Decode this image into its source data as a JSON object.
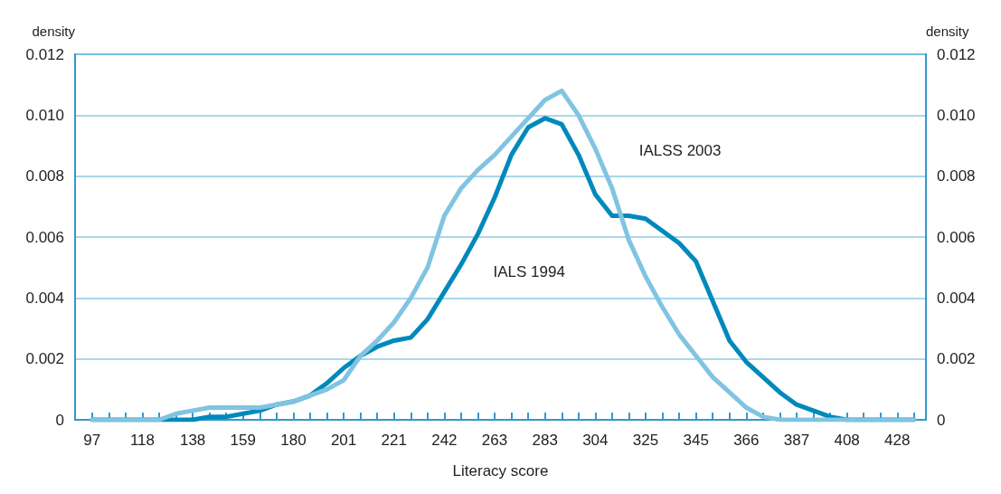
{
  "chart_data": {
    "type": "line",
    "xlabel": "Literacy score",
    "ylabel": "density",
    "y2label": "density",
    "x": [
      97,
      103.9,
      110.8,
      117.7,
      124.6,
      131.5,
      138.4,
      145.3,
      152.2,
      159.1,
      166,
      172.9,
      179.8,
      186.7,
      193.6,
      200.5,
      207.4,
      214.3,
      221.2,
      228.1,
      235,
      241.9,
      248.8,
      255.7,
      262.6,
      269.5,
      276.4,
      283.3,
      290.2,
      297.1,
      304,
      310.9,
      317.8,
      324.7,
      331.6,
      338.5,
      345.4,
      352.3,
      359.2,
      366.1,
      373,
      379.9,
      386.8,
      393.7,
      400.6,
      407.5,
      414.4,
      421.3,
      428.2,
      435.1
    ],
    "series": [
      {
        "name": "IALS 1994",
        "color": "#0089bb",
        "values": [
          0,
          0,
          0,
          0,
          0,
          0,
          0,
          0.0001,
          0.0001,
          0.0002,
          0.0003,
          0.0005,
          0.0006,
          0.0008,
          0.0012,
          0.0017,
          0.0021,
          0.0024,
          0.0026,
          0.0027,
          0.0033,
          0.0042,
          0.0051,
          0.0061,
          0.0073,
          0.0087,
          0.0096,
          0.0099,
          0.0097,
          0.0087,
          0.0074,
          0.0067,
          0.0067,
          0.0066,
          0.0062,
          0.0058,
          0.0052,
          0.0039,
          0.0026,
          0.0019,
          0.0014,
          0.0009,
          0.0005,
          0.0003,
          0.0001,
          0,
          0,
          0,
          0,
          0
        ]
      },
      {
        "name": "IALSS 2003",
        "color": "#80c4e2",
        "values": [
          0,
          0,
          0,
          0,
          0,
          0.0002,
          0.0003,
          0.0004,
          0.0004,
          0.0004,
          0.0004,
          0.0005,
          0.0006,
          0.0008,
          0.001,
          0.0013,
          0.0021,
          0.0026,
          0.0032,
          0.004,
          0.005,
          0.0067,
          0.0076,
          0.0082,
          0.0087,
          0.0093,
          0.0099,
          0.0105,
          0.0108,
          0.01,
          0.0089,
          0.0076,
          0.0059,
          0.0047,
          0.0037,
          0.0028,
          0.0021,
          0.0014,
          0.0009,
          0.0004,
          0.0001,
          0,
          0,
          0,
          0,
          0,
          0,
          0,
          0,
          0
        ]
      }
    ],
    "xlim": [
      90,
      440
    ],
    "xticks": [
      97,
      {
        "value": 103.9,
        "label": null
      },
      {
        "value": 110.8,
        "label": null
      },
      {
        "value": 117.7,
        "label": "118"
      },
      {
        "value": 124.6,
        "label": null
      },
      {
        "value": 131.5,
        "label": null
      },
      {
        "value": 138.4,
        "label": "138"
      },
      {
        "value": 145.3,
        "label": null
      },
      {
        "value": 152.2,
        "label": null
      },
      {
        "value": 159.1,
        "label": "159"
      },
      {
        "value": 166,
        "label": null
      },
      {
        "value": 172.9,
        "label": null
      },
      {
        "value": 179.8,
        "label": "180"
      },
      {
        "value": 186.7,
        "label": null
      },
      {
        "value": 193.6,
        "label": null
      },
      {
        "value": 200.5,
        "label": "201"
      },
      {
        "value": 207.4,
        "label": null
      },
      {
        "value": 214.3,
        "label": null
      },
      {
        "value": 221.2,
        "label": "221"
      },
      {
        "value": 228.1,
        "label": null
      },
      {
        "value": 235,
        "label": null
      },
      {
        "value": 241.9,
        "label": "242"
      },
      {
        "value": 248.8,
        "label": null
      },
      {
        "value": 255.7,
        "label": null
      },
      {
        "value": 262.6,
        "label": "263"
      },
      {
        "value": 269.5,
        "label": null
      },
      {
        "value": 276.4,
        "label": null
      },
      {
        "value": 283.3,
        "label": "283"
      },
      {
        "value": 290.2,
        "label": null
      },
      {
        "value": 297.1,
        "label": null
      },
      {
        "value": 304,
        "label": "304"
      },
      {
        "value": 310.9,
        "label": null
      },
      {
        "value": 317.8,
        "label": null
      },
      {
        "value": 324.7,
        "label": "325"
      },
      {
        "value": 331.6,
        "label": null
      },
      {
        "value": 338.5,
        "label": null
      },
      {
        "value": 345.4,
        "label": "345"
      },
      {
        "value": 352.3,
        "label": null
      },
      {
        "value": 359.2,
        "label": null
      },
      {
        "value": 366.1,
        "label": "366"
      },
      {
        "value": 373,
        "label": null
      },
      {
        "value": 379.9,
        "label": null
      },
      {
        "value": 386.8,
        "label": "387"
      },
      {
        "value": 393.7,
        "label": null
      },
      {
        "value": 400.6,
        "label": null
      },
      {
        "value": 407.5,
        "label": "408"
      },
      {
        "value": 414.4,
        "label": null
      },
      {
        "value": 421.3,
        "label": null
      },
      {
        "value": 428.2,
        "label": "428"
      },
      {
        "value": 435.1,
        "label": null
      }
    ],
    "ylim": [
      0,
      0.012
    ],
    "yticks": [
      0,
      0.002,
      0.004,
      0.006,
      0.008,
      {
        "value": 0.01,
        "label": "0.010"
      },
      {
        "value": 0.012,
        "label": "0.012"
      }
    ],
    "y2lim": [
      0,
      0.012
    ],
    "y2ticks": [
      0,
      0.002,
      0.004,
      0.006,
      0.008,
      {
        "value": 0.01,
        "label": "0.010"
      },
      {
        "value": 0.012,
        "label": "0.012"
      }
    ],
    "grid": "y",
    "legend": false,
    "marker": "none",
    "line_style": "solid"
  }
}
